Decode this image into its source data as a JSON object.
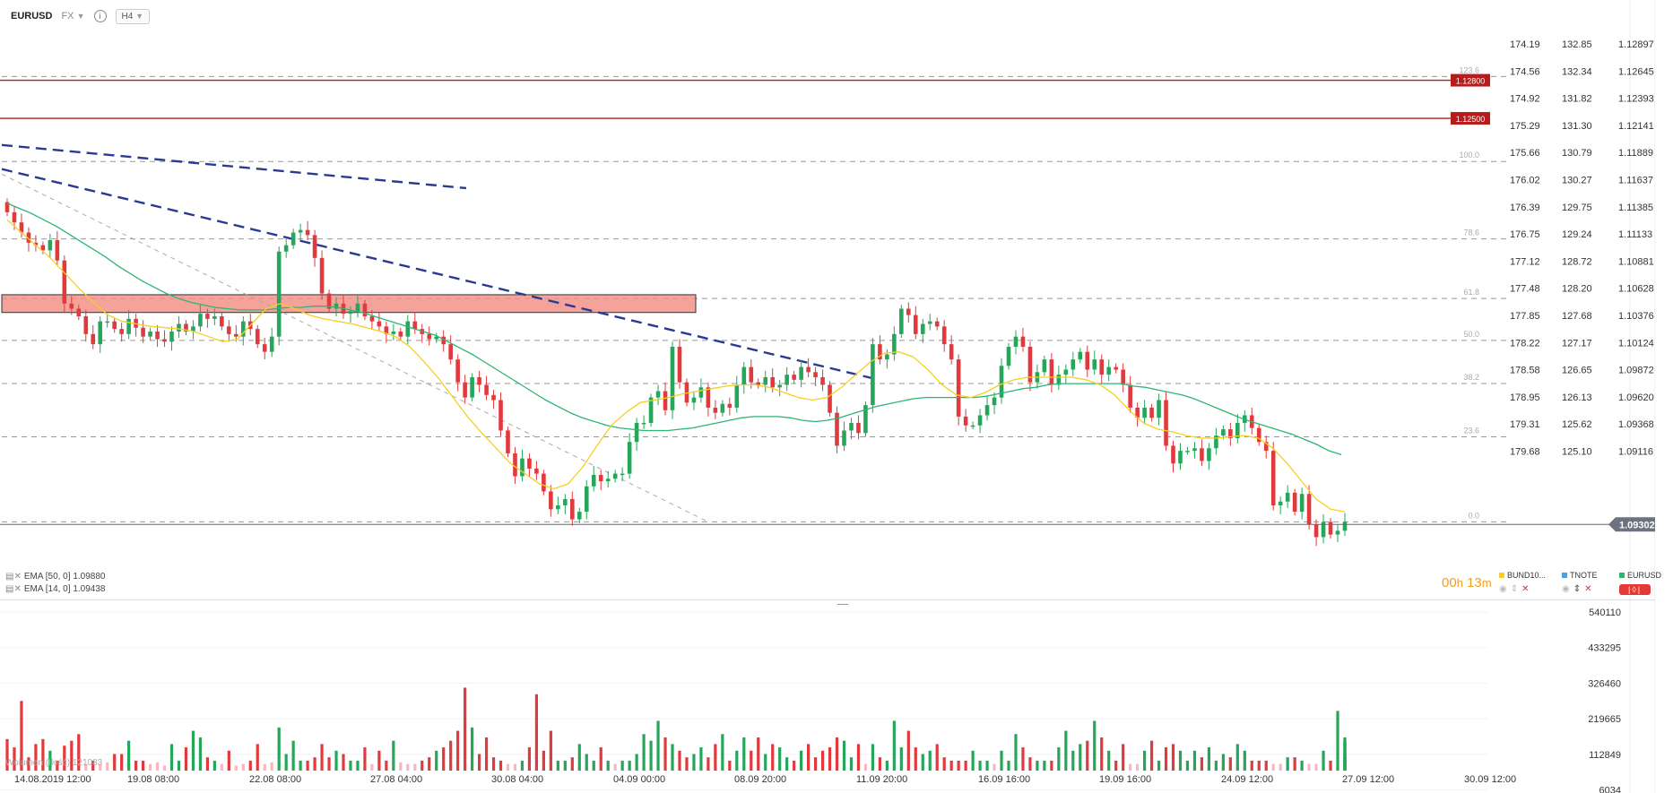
{
  "header": {
    "symbol": "EURUSD",
    "market": "FX",
    "timeframe": "H4"
  },
  "indicators": [
    {
      "label": "EMA [50, 0]",
      "value": "1.09880",
      "color": "#2bb673"
    },
    {
      "label": "EMA [14, 0]",
      "value": "1.09438",
      "color": "#f5d020"
    }
  ],
  "volume_legend": "Wolumen (Ilość) 121083",
  "countdown": {
    "hours": "00",
    "h": "h",
    "minutes": "13",
    "m": "m"
  },
  "instruments": [
    {
      "name": "BUND10...",
      "color": "#f5d020"
    },
    {
      "name": "TNOTE",
      "color": "#4aa3df"
    },
    {
      "name": "EURUSD",
      "color": "#2bb673",
      "active": true
    }
  ],
  "colors": {
    "up": "#26a65b",
    "down": "#e03a3e",
    "ema50": "#2bb673",
    "ema14": "#f5d020",
    "trend": "#2a3a94",
    "zone": "#f28b82",
    "level": "#b71c1c"
  },
  "chart_data": {
    "type": "candlestick",
    "price_axes": [
      {
        "name": "BUND10",
        "ticks": [
          "174.19",
          "174.56",
          "174.92",
          "175.29",
          "175.66",
          "176.02",
          "176.39",
          "176.75",
          "177.12",
          "177.48",
          "177.85",
          "178.22",
          "178.58",
          "178.95",
          "179.31",
          "179.68"
        ]
      },
      {
        "name": "TNOTE",
        "ticks": [
          "132.85",
          "132.34",
          "131.82",
          "131.30",
          "130.79",
          "130.27",
          "129.75",
          "129.24",
          "128.72",
          "128.20",
          "127.68",
          "127.17",
          "126.65",
          "126.13",
          "125.62",
          "125.10"
        ]
      },
      {
        "name": "EURUSD",
        "ticks": [
          "1.12897",
          "1.12645",
          "1.12393",
          "1.12141",
          "1.11889",
          "1.11637",
          "1.11385",
          "1.11133",
          "1.10881",
          "1.10628",
          "1.10376",
          "1.10124",
          "1.09872",
          "1.09620",
          "1.09368",
          "1.09116"
        ]
      }
    ],
    "ylim": [
      1.0897,
      1.1315
    ],
    "current_price": "1.09302",
    "horizontal_levels": [
      {
        "price": 1.128,
        "label": "1.12800"
      },
      {
        "price": 1.125,
        "label": "1.12500"
      }
    ],
    "fibonacci": [
      {
        "level": "123.6",
        "price": 1.1283
      },
      {
        "level": "100.0",
        "price": 1.1216
      },
      {
        "level": "78.6",
        "price": 1.1155
      },
      {
        "level": "61.8",
        "price": 1.1108
      },
      {
        "level": "50.0",
        "price": 1.1075
      },
      {
        "level": "38.2",
        "price": 1.1041
      },
      {
        "level": "23.6",
        "price": 1.0999
      },
      {
        "level": "0.0",
        "price": 1.0932
      }
    ],
    "x_labels": [
      "14.08.2019   12:00",
      "19.08  08:00",
      "22.08  08:00",
      "27.08  04:00",
      "30.08  04:00",
      "04.09  00:00",
      "08.09  20:00",
      "11.09  20:00",
      "16.09  16:00",
      "19.09  16:00",
      "24.09  12:00",
      "27.09  12:00",
      "30.09  12:00"
    ],
    "close_series": [
      1.1176,
      1.1168,
      1.116,
      1.1152,
      1.115,
      1.1146,
      1.1154,
      1.1138,
      1.1104,
      1.11,
      1.1094,
      1.108,
      1.1072,
      1.109,
      1.109,
      1.1084,
      1.108,
      1.1092,
      1.1085,
      1.1078,
      1.1082,
      1.1076,
      1.1074,
      1.1082,
      1.1088,
      1.1082,
      1.1086,
      1.1096,
      1.1092,
      1.1094,
      1.1086,
      1.108,
      1.1078,
      1.109,
      1.1084,
      1.1072,
      1.1066,
      1.1078,
      1.1145,
      1.115,
      1.116,
      1.1162,
      1.1158,
      1.114,
      1.1112,
      1.11,
      1.1104,
      1.1096,
      1.1098,
      1.1104,
      1.1094,
      1.109,
      1.1086,
      1.108,
      1.1082,
      1.1078,
      1.109,
      1.1084,
      1.108,
      1.1076,
      1.1078,
      1.1072,
      1.106,
      1.1042,
      1.103,
      1.1046,
      1.104,
      1.1032,
      1.1028,
      1.1004,
      1.0986,
      1.0968,
      1.0982,
      1.0974,
      1.097,
      1.0956,
      1.0942,
      1.0945,
      1.095,
      1.0934,
      1.094,
      1.096,
      1.0969,
      1.0964,
      1.0966,
      1.097,
      1.097,
      1.0995,
      1.101,
      1.101,
      1.103,
      1.1035,
      1.102,
      1.107,
      1.1042,
      1.1026,
      1.103,
      1.1038,
      1.1022,
      1.1018,
      1.1025,
      1.1022,
      1.104,
      1.1054,
      1.1042,
      1.104,
      1.1046,
      1.1038,
      1.104,
      1.1048,
      1.1044,
      1.1054,
      1.105,
      1.1046,
      1.104,
      1.1018,
      1.0992,
      1.1004,
      1.101,
      1.1002,
      1.1024,
      1.1072,
      1.106,
      1.1064,
      1.108,
      1.11,
      1.1095,
      1.108,
      1.1088,
      1.109,
      1.1086,
      1.1072,
      1.106,
      1.1015,
      1.1008,
      1.1008,
      1.1016,
      1.1024,
      1.103,
      1.1055,
      1.107,
      1.1078,
      1.107,
      1.1042,
      1.105,
      1.106,
      1.104,
      1.1048,
      1.1052,
      1.106,
      1.1066,
      1.1052,
      1.106,
      1.1048,
      1.1054,
      1.1052,
      1.104,
      1.1022,
      1.1014,
      1.1022,
      1.1014,
      1.1028,
      1.0992,
      1.0978,
      1.0988,
      1.0988,
      1.099,
      1.098,
      1.099,
      1.1,
      1.1005,
      1.0998,
      1.101,
      1.1016,
      1.1006,
      1.0995,
      1.0988,
      1.0945,
      1.0948,
      1.0955,
      1.094,
      1.0954,
      1.093,
      1.092,
      1.0932,
      1.0922,
      1.0925,
      1.0932
    ],
    "ema50": [
      1.1183,
      1.1179,
      1.1175,
      1.117,
      1.1165,
      1.1159,
      1.1153,
      1.1147,
      1.1141,
      1.1134,
      1.1128,
      1.1122,
      1.1117,
      1.1112,
      1.1108,
      1.1105,
      1.1103,
      1.1101,
      1.11,
      1.1099,
      1.1099,
      1.1099,
      1.11,
      1.1101,
      1.1101,
      1.1102,
      1.1102,
      1.1101,
      1.1099,
      1.1097,
      1.1094,
      1.1091,
      1.1088,
      1.1085,
      1.1082,
      1.1079,
      1.1074,
      1.1069,
      1.1064,
      1.1058,
      1.1052,
      1.1046,
      1.104,
      1.1034,
      1.1028,
      1.1023,
      1.1018,
      1.1014,
      1.1011,
      1.1008,
      1.1006,
      1.1005,
      1.1004,
      1.1004,
      1.1004,
      1.1005,
      1.1006,
      1.1008,
      1.101,
      1.1012,
      1.1014,
      1.1015,
      1.1015,
      1.1015,
      1.1014,
      1.1012,
      1.1011,
      1.1012,
      1.1014,
      1.1017,
      1.102,
      1.1023,
      1.1025,
      1.1027,
      1.1029,
      1.103,
      1.103,
      1.103,
      1.103,
      1.103,
      1.1031,
      1.1033,
      1.1035,
      1.1037,
      1.1038,
      1.104,
      1.1041,
      1.1041,
      1.1041,
      1.1041,
      1.1041,
      1.1041,
      1.1039,
      1.1038,
      1.1036,
      1.1034,
      1.1032,
      1.1029,
      1.1025,
      1.1021,
      1.1017,
      1.1013,
      1.101,
      1.1007,
      1.1004,
      1.1001,
      1.0997,
      1.0993,
      1.0988,
      1.0985
    ],
    "ema14": [
      1.117,
      1.116,
      1.115,
      1.114,
      1.1128,
      1.1116,
      1.1105,
      1.1095,
      1.109,
      1.1088,
      1.1086,
      1.1085,
      1.1084,
      1.1082,
      1.1078,
      1.1074,
      1.1076,
      1.1088,
      1.11,
      1.1104,
      1.11,
      1.1095,
      1.1092,
      1.109,
      1.1088,
      1.1085,
      1.1082,
      1.1078,
      1.107,
      1.1058,
      1.1045,
      1.103,
      1.1015,
      1.1002,
      1.099,
      1.0978,
      1.097,
      1.0962,
      1.0958,
      1.0962,
      1.0975,
      1.0992,
      1.1008,
      1.1018,
      1.1026,
      1.1028,
      1.103,
      1.1033,
      1.1035,
      1.1037,
      1.1039,
      1.104,
      1.104,
      1.1038,
      1.1034,
      1.103,
      1.1028,
      1.103,
      1.1038,
      1.1048,
      1.1058,
      1.1065,
      1.1066,
      1.1062,
      1.1052,
      1.104,
      1.1032,
      1.103,
      1.1034,
      1.104,
      1.1044,
      1.1046,
      1.1046,
      1.1046,
      1.1046,
      1.1044,
      1.104,
      1.1032,
      1.102,
      1.101,
      1.1005,
      1.1003,
      1.1,
      1.0998,
      1.0998,
      1.0999,
      1.1,
      1.0998,
      1.099,
      1.0978,
      1.0964,
      1.095,
      1.0942,
      1.094
    ],
    "volume_axis": [
      "540110",
      "433295",
      "326460",
      "219665",
      "112849",
      "6034"
    ],
    "volume": [
      95000,
      70000,
      210000,
      40000,
      80000,
      95000,
      60000,
      30000,
      75000,
      90000,
      110000,
      20000,
      30000,
      20000,
      25000,
      50000,
      50000,
      90000,
      30000,
      30000,
      20000,
      25000,
      15000,
      80000,
      30000,
      70000,
      120000,
      100000,
      40000,
      30000,
      20000,
      60000,
      15000,
      20000,
      30000,
      80000,
      20000,
      25000,
      130000,
      50000,
      90000,
      30000,
      30000,
      40000,
      80000,
      40000,
      60000,
      50000,
      30000,
      30000,
      70000,
      20000,
      60000,
      30000,
      90000,
      25000,
      20000,
      20000,
      30000,
      40000,
      60000,
      70000,
      90000,
      120000,
      250000,
      130000,
      50000,
      100000,
      40000,
      30000,
      20000,
      20000,
      30000,
      70000,
      230000,
      60000,
      120000,
      30000,
      30000,
      40000,
      80000,
      50000,
      30000,
      70000,
      30000,
      20000,
      30000,
      30000,
      50000,
      110000,
      90000,
      150000,
      100000,
      80000,
      60000,
      40000,
      50000,
      70000,
      40000,
      80000,
      110000,
      30000,
      60000,
      100000,
      60000,
      100000,
      50000,
      80000,
      70000,
      40000,
      30000,
      60000,
      80000,
      40000,
      60000,
      70000,
      100000,
      90000,
      40000,
      80000,
      20000,
      80000,
      40000,
      30000,
      150000,
      70000,
      120000,
      70000,
      50000,
      60000,
      80000,
      40000,
      30000,
      30000,
      30000,
      60000,
      30000,
      30000,
      20000,
      60000,
      30000,
      110000,
      70000,
      40000,
      30000,
      30000,
      30000,
      70000,
      120000,
      60000,
      80000,
      90000,
      150000,
      100000,
      60000,
      30000,
      80000,
      20000,
      20000,
      60000,
      90000,
      30000,
      70000,
      80000,
      60000,
      30000,
      60000,
      40000,
      70000,
      30000,
      50000,
      40000,
      80000,
      60000,
      30000,
      30000,
      30000,
      20000,
      20000,
      40000,
      40000,
      30000,
      20000,
      20000,
      60000,
      30000,
      180000,
      40000,
      60000,
      100000,
      90000,
      50000,
      40000,
      30000,
      90000,
      80000
    ]
  }
}
